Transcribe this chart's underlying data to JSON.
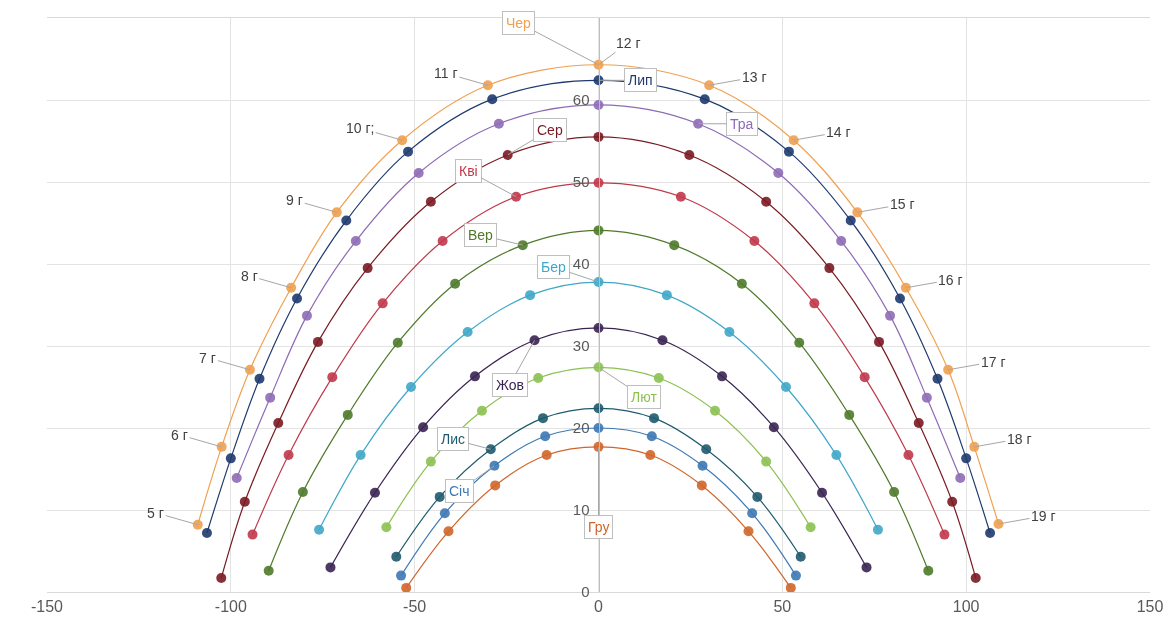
{
  "chart_data": {
    "type": "line",
    "marker": "circle",
    "line_style": "solid",
    "grid": true,
    "legend": false,
    "xlim": [
      -150,
      150
    ],
    "xticks": [
      -150,
      -100,
      -50,
      0,
      50,
      100,
      150
    ],
    "ylim": [
      0,
      70
    ],
    "yticks": [
      0,
      10,
      20,
      30,
      40,
      50,
      60
    ],
    "series": [
      {
        "name": "Чер",
        "color": "#f0a050",
        "x": [
          -109,
          -102.5,
          -94.8,
          -83.6,
          -71.2,
          -53.4,
          -30.1,
          0,
          30.1,
          53.1,
          70.4,
          83.6,
          95.1,
          102.2,
          108.8
        ],
        "values": [
          8.2,
          17.7,
          27.1,
          37.1,
          46.3,
          55.1,
          61.8,
          64.3,
          61.8,
          55.1,
          46.3,
          37.1,
          27.1,
          17.7,
          8.3
        ]
      },
      {
        "name": "Лип",
        "color": "#1f3a6e",
        "x": [
          -106.5,
          -100,
          -92.2,
          -82,
          -68.6,
          -51.8,
          -28.9,
          0,
          28.9,
          51.8,
          68.6,
          82,
          92.2,
          100,
          106.5
        ],
        "values": [
          7.2,
          16.3,
          26,
          35.8,
          45.3,
          53.7,
          60.1,
          62.4,
          60.1,
          53.7,
          45.3,
          35.8,
          26,
          16.3,
          7.2
        ]
      },
      {
        "name": "Тра",
        "color": "#8e6bb5",
        "x": [
          -98.4,
          -89.3,
          -79.3,
          -66,
          -48.9,
          -27.1,
          0,
          27.1,
          48.9,
          66,
          79.3,
          89.3,
          98.4
        ],
        "values": [
          13.9,
          23.7,
          33.7,
          42.8,
          51.1,
          57.1,
          59.4,
          57.1,
          51.1,
          42.8,
          33.7,
          23.7,
          13.9
        ]
      },
      {
        "name": "Сер",
        "color": "#7a1a22",
        "x": [
          -102.6,
          -96.2,
          -87.1,
          -76.3,
          -62.8,
          -45.6,
          -24.7,
          0,
          24.7,
          45.6,
          62.8,
          76.3,
          87.1,
          96.2,
          102.6
        ],
        "values": [
          1.7,
          11,
          20.6,
          30.5,
          39.5,
          47.6,
          53.3,
          55.5,
          53.3,
          47.6,
          39.5,
          30.5,
          20.6,
          11,
          1.7
        ]
      },
      {
        "name": "Кві",
        "color": "#c0394b",
        "x": [
          -94.1,
          -84.3,
          -72.4,
          -58.7,
          -42.4,
          -22.4,
          0,
          22.4,
          42.4,
          58.7,
          72.4,
          84.3,
          94.1
        ],
        "values": [
          7,
          16.7,
          26.2,
          35.2,
          42.8,
          48.2,
          49.9,
          48.2,
          42.8,
          35.2,
          26.2,
          16.7,
          7
        ]
      },
      {
        "name": "Вер",
        "color": "#4f7a2a",
        "x": [
          -89.7,
          -80.4,
          -68.2,
          -54.6,
          -39,
          -20.6,
          0,
          20.6,
          39,
          54.6,
          68.2,
          80.4,
          89.7
        ],
        "values": [
          2.6,
          12.2,
          21.6,
          30.4,
          37.6,
          42.3,
          44.1,
          42.3,
          37.6,
          30.4,
          21.6,
          12.2,
          2.6
        ]
      },
      {
        "name": "Бер",
        "color": "#3fa7c8",
        "x": [
          -76,
          -64.7,
          -51,
          -35.6,
          -18.6,
          0,
          18.6,
          35.6,
          51,
          64.7,
          76
        ],
        "values": [
          7.6,
          16.7,
          25,
          31.7,
          36.2,
          37.8,
          36.2,
          31.7,
          25,
          16.7,
          7.6
        ]
      },
      {
        "name": "Жов",
        "color": "#3a2352",
        "x": [
          -72.9,
          -60.8,
          -47.7,
          -33.6,
          -17.4,
          0,
          17.4,
          33.6,
          47.7,
          60.8,
          72.9
        ],
        "values": [
          3,
          12.1,
          20.1,
          26.3,
          30.7,
          32.2,
          30.7,
          26.3,
          20.1,
          12.1,
          3
        ]
      },
      {
        "name": "Лют",
        "color": "#8cc152",
        "x": [
          -57.7,
          -45.6,
          -31.7,
          -16.4,
          0,
          16.4,
          31.7,
          45.6,
          57.7
        ],
        "values": [
          7.9,
          15.9,
          22.1,
          26.1,
          27.4,
          26.1,
          22.1,
          15.9,
          7.9
        ]
      },
      {
        "name": "Лис",
        "color": "#1e5a6e",
        "x": [
          -55,
          -43.2,
          -29.3,
          -15.1,
          0,
          15.1,
          29.3,
          43.2,
          55
        ],
        "values": [
          4.3,
          11.6,
          17.4,
          21.2,
          22.4,
          21.2,
          17.4,
          11.6,
          4.3
        ]
      },
      {
        "name": "Січ",
        "color": "#3d78b5",
        "x": [
          -53.7,
          -41.8,
          -28.3,
          -14.5,
          0,
          14.5,
          28.3,
          41.8,
          53.7
        ],
        "values": [
          2,
          9.6,
          15.4,
          19,
          20,
          19,
          15.4,
          9.6,
          2
        ]
      },
      {
        "name": "Гру",
        "color": "#d0652a",
        "x": [
          -52.3,
          -40.8,
          -28.1,
          -14.1,
          0,
          14.1,
          28.1,
          40.8,
          52.3
        ],
        "values": [
          0.5,
          7.4,
          13,
          16.7,
          17.7,
          16.7,
          13,
          7.4,
          0.5
        ]
      }
    ],
    "annotations": [
      {
        "text": "5 г",
        "x": -109,
        "y": 8.2
      },
      {
        "text": "6 г",
        "x": -102.5,
        "y": 17.7
      },
      {
        "text": "7 г",
        "x": -94.8,
        "y": 27.1
      },
      {
        "text": "8 г",
        "x": -83.6,
        "y": 37.1
      },
      {
        "text": "9 г",
        "x": -71.2,
        "y": 46.3
      },
      {
        "text": "10 г;",
        "x": -53.4,
        "y": 55.1
      },
      {
        "text": "11 г",
        "x": -30.1,
        "y": 61.8
      },
      {
        "text": "12 г",
        "x": 0,
        "y": 64.3
      },
      {
        "text": "13 г",
        "x": 30.1,
        "y": 61.8
      },
      {
        "text": "14 г",
        "x": 53.1,
        "y": 55.1
      },
      {
        "text": "15 г",
        "x": 70.4,
        "y": 46.3
      },
      {
        "text": "16 г",
        "x": 83.6,
        "y": 37.1
      },
      {
        "text": "17 г",
        "x": 95.1,
        "y": 27.1
      },
      {
        "text": "18 г",
        "x": 102.2,
        "y": 17.7
      },
      {
        "text": "19 г",
        "x": 108.8,
        "y": 8.3
      }
    ]
  }
}
